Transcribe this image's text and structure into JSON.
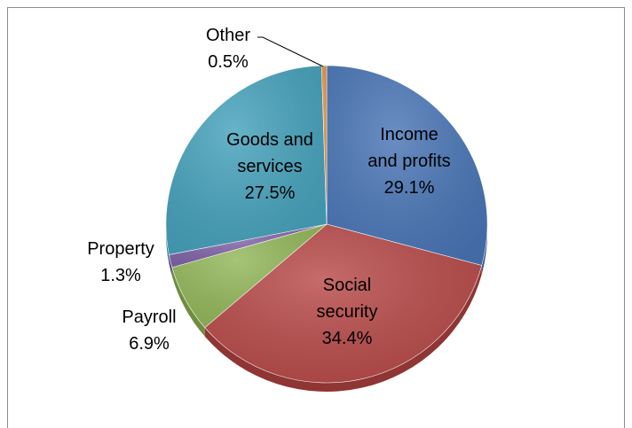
{
  "chart_data": {
    "type": "pie",
    "title": "",
    "slices": [
      {
        "label": [
          "Income",
          "and profits",
          "29.1%"
        ],
        "value": 29.1,
        "color": "#4a76b7",
        "shade": "#365a90"
      },
      {
        "label": [
          "Social",
          "security",
          "34.4%"
        ],
        "value": 34.4,
        "color": "#b94b4a",
        "shade": "#8f3534"
      },
      {
        "label": [
          "Payroll",
          "6.9%"
        ],
        "value": 6.9,
        "color": "#94b85a",
        "shade": "#6f8c40"
      },
      {
        "label": [
          "Property",
          "1.3%"
        ],
        "value": 1.3,
        "color": "#8064a8",
        "shade": "#5f4a80"
      },
      {
        "label": [
          "Goods and",
          "services",
          "27.5%"
        ],
        "value": 27.5,
        "color": "#46a3bd",
        "shade": "#2f7c91"
      },
      {
        "label": [
          "Other",
          "0.5%"
        ],
        "value": 0.5,
        "color": "#e88d3e",
        "shade": "#b96c2a"
      }
    ],
    "start_angle_deg": 0,
    "direction": "clockwise"
  }
}
